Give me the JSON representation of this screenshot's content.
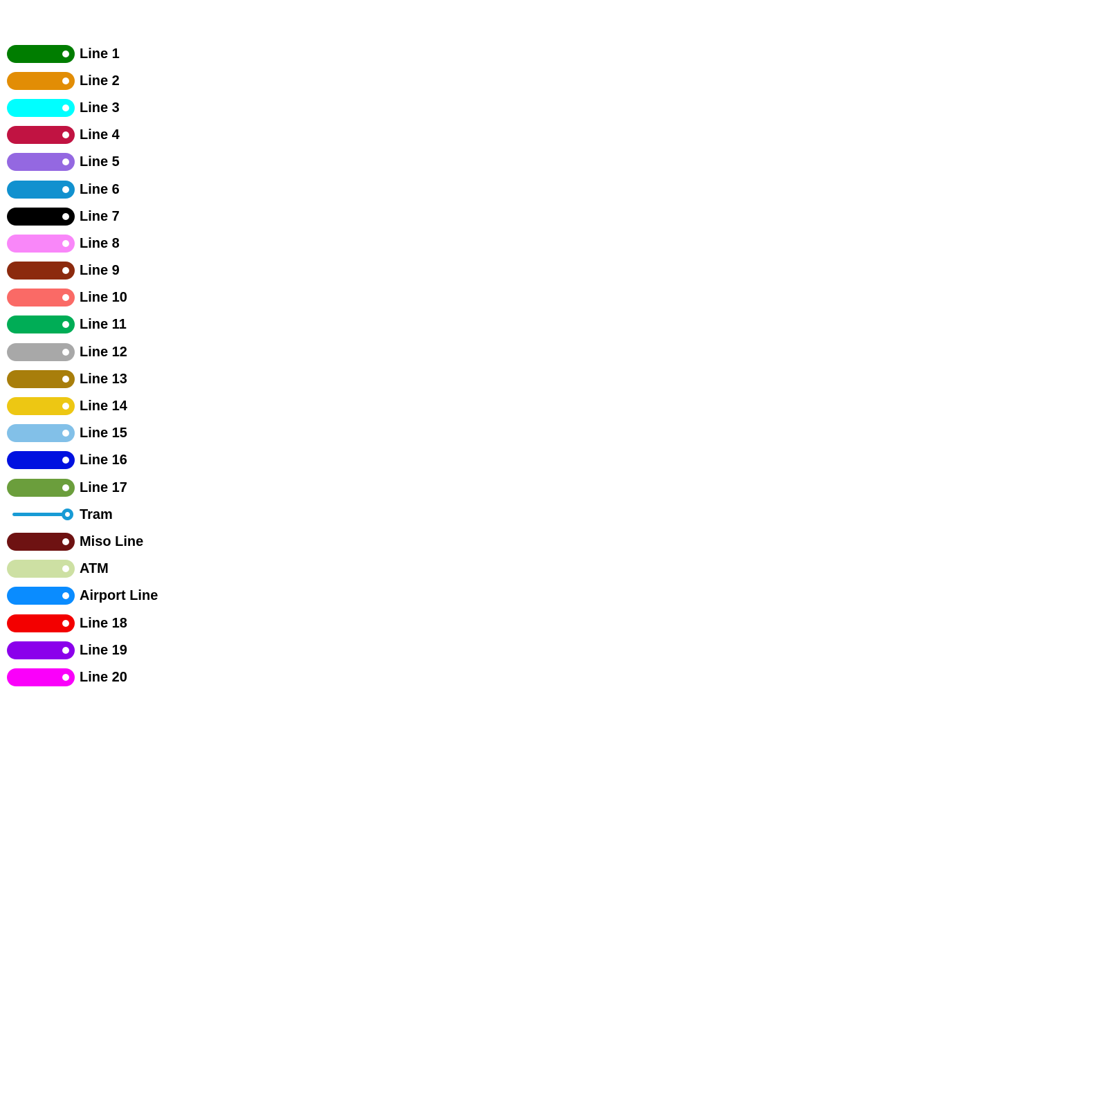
{
  "legend": {
    "marker_color": "#ffffff",
    "text_color": "#000000",
    "items": [
      {
        "label": "Line 1",
        "color": "#007D00",
        "shape": "pill"
      },
      {
        "label": "Line 2",
        "color": "#E28D05",
        "shape": "pill"
      },
      {
        "label": "Line 3",
        "color": "#00FFFF",
        "shape": "pill"
      },
      {
        "label": "Line 4",
        "color": "#C11342",
        "shape": "pill"
      },
      {
        "label": "Line 5",
        "color": "#9468E1",
        "shape": "pill"
      },
      {
        "label": "Line 6",
        "color": "#1191CF",
        "shape": "pill"
      },
      {
        "label": "Line 7",
        "color": "#000000",
        "shape": "pill"
      },
      {
        "label": "Line 8",
        "color": "#F987F9",
        "shape": "pill"
      },
      {
        "label": "Line 9",
        "color": "#8C2A0E",
        "shape": "pill"
      },
      {
        "label": "Line 10",
        "color": "#FA6A66",
        "shape": "pill"
      },
      {
        "label": "Line 11",
        "color": "#00AD56",
        "shape": "pill"
      },
      {
        "label": "Line 12",
        "color": "#A8A8A8",
        "shape": "pill"
      },
      {
        "label": "Line 13",
        "color": "#A87E0B",
        "shape": "pill"
      },
      {
        "label": "Line 14",
        "color": "#EDC713",
        "shape": "pill"
      },
      {
        "label": "Line 15",
        "color": "#82C0E8",
        "shape": "pill"
      },
      {
        "label": "Line 16",
        "color": "#0011E0",
        "shape": "pill"
      },
      {
        "label": "Line 17",
        "color": "#6B9E3C",
        "shape": "pill"
      },
      {
        "label": "Tram",
        "color": "#189BD5",
        "shape": "tram"
      },
      {
        "label": "Miso Line",
        "color": "#6E1212",
        "shape": "pill"
      },
      {
        "label": "ATM",
        "color": "#CDE0A3",
        "shape": "pill"
      },
      {
        "label": "Airport Line",
        "color": "#0A8CFF",
        "shape": "pill"
      },
      {
        "label": "Line 18",
        "color": "#F30000",
        "shape": "pill"
      },
      {
        "label": "Line 19",
        "color": "#8B00EB",
        "shape": "pill"
      },
      {
        "label": "Line 20",
        "color": "#FA00FA",
        "shape": "pill"
      }
    ]
  }
}
